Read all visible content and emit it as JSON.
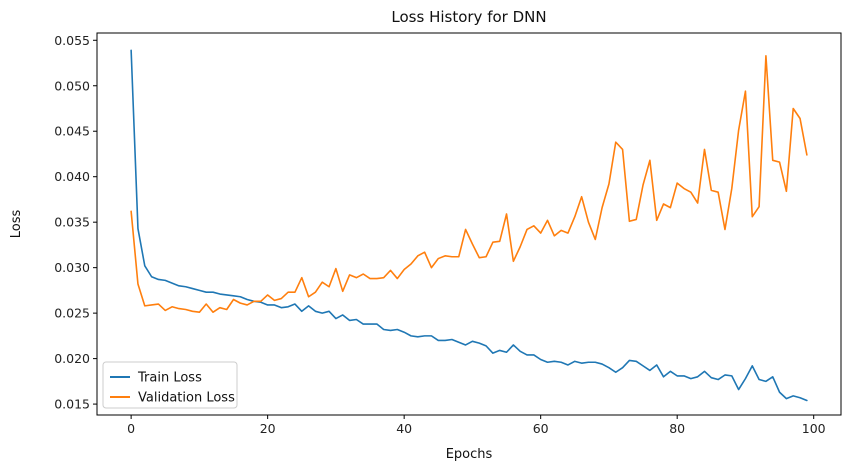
{
  "chart_data": {
    "type": "line",
    "title": "Loss History for DNN",
    "xlabel": "Epochs",
    "ylabel": "Loss",
    "xlim": [
      -5,
      104
    ],
    "ylim": [
      0.0138,
      0.0558
    ],
    "xticks": [
      0,
      20,
      40,
      60,
      80,
      100
    ],
    "yticks": [
      0.015,
      0.02,
      0.025,
      0.03,
      0.035,
      0.04,
      0.045,
      0.05,
      0.055
    ],
    "ytick_labels": [
      "0.015",
      "0.020",
      "0.025",
      "0.030",
      "0.035",
      "0.040",
      "0.045",
      "0.050",
      "0.055"
    ],
    "grid": false,
    "legend_position": "lower-left",
    "series": [
      {
        "name": "Train Loss",
        "color": "#1f77b4",
        "x": [
          0,
          1,
          2,
          3,
          4,
          5,
          6,
          7,
          8,
          9,
          10,
          11,
          12,
          13,
          14,
          15,
          16,
          17,
          18,
          19,
          20,
          21,
          22,
          23,
          24,
          25,
          26,
          27,
          28,
          29,
          30,
          31,
          32,
          33,
          34,
          35,
          36,
          37,
          38,
          39,
          40,
          41,
          42,
          43,
          44,
          45,
          46,
          47,
          48,
          49,
          50,
          51,
          52,
          53,
          54,
          55,
          56,
          57,
          58,
          59,
          60,
          61,
          62,
          63,
          64,
          65,
          66,
          67,
          68,
          69,
          70,
          71,
          72,
          73,
          74,
          75,
          76,
          77,
          78,
          79,
          80,
          81,
          82,
          83,
          84,
          85,
          86,
          87,
          88,
          89,
          90,
          91,
          92,
          93,
          94,
          95,
          96,
          97,
          98,
          99
        ],
        "values": [
          0.0539,
          0.0343,
          0.0302,
          0.029,
          0.0287,
          0.0286,
          0.0283,
          0.028,
          0.0279,
          0.0277,
          0.0275,
          0.0273,
          0.0273,
          0.0271,
          0.027,
          0.0269,
          0.0268,
          0.0265,
          0.0263,
          0.0262,
          0.0259,
          0.0259,
          0.0256,
          0.0257,
          0.026,
          0.0252,
          0.0258,
          0.0252,
          0.025,
          0.0252,
          0.0244,
          0.0248,
          0.0242,
          0.0243,
          0.0238,
          0.0238,
          0.0238,
          0.0232,
          0.0231,
          0.0232,
          0.0229,
          0.0225,
          0.0224,
          0.0225,
          0.0225,
          0.022,
          0.022,
          0.0221,
          0.0218,
          0.0215,
          0.0219,
          0.0217,
          0.0214,
          0.0206,
          0.0209,
          0.0207,
          0.0215,
          0.0208,
          0.0204,
          0.0204,
          0.0199,
          0.0196,
          0.0197,
          0.0196,
          0.0193,
          0.0197,
          0.0195,
          0.0196,
          0.0196,
          0.0194,
          0.019,
          0.0185,
          0.019,
          0.0198,
          0.0197,
          0.0192,
          0.0187,
          0.0193,
          0.018,
          0.0186,
          0.0181,
          0.0181,
          0.0178,
          0.018,
          0.0186,
          0.0179,
          0.0177,
          0.0182,
          0.0181,
          0.0166,
          0.0178,
          0.0192,
          0.0177,
          0.0175,
          0.018,
          0.0163,
          0.0156,
          0.0159,
          0.0157,
          0.0154
        ]
      },
      {
        "name": "Validation Loss",
        "color": "#ff7f0e",
        "x": [
          0,
          1,
          2,
          3,
          4,
          5,
          6,
          7,
          8,
          9,
          10,
          11,
          12,
          13,
          14,
          15,
          16,
          17,
          18,
          19,
          20,
          21,
          22,
          23,
          24,
          25,
          26,
          27,
          28,
          29,
          30,
          31,
          32,
          33,
          34,
          35,
          36,
          37,
          38,
          39,
          40,
          41,
          42,
          43,
          44,
          45,
          46,
          47,
          48,
          49,
          50,
          51,
          52,
          53,
          54,
          55,
          56,
          57,
          58,
          59,
          60,
          61,
          62,
          63,
          64,
          65,
          66,
          67,
          68,
          69,
          70,
          71,
          72,
          73,
          74,
          75,
          76,
          77,
          78,
          79,
          80,
          81,
          82,
          83,
          84,
          85,
          86,
          87,
          88,
          89,
          90,
          91,
          92,
          93,
          94,
          95,
          96,
          97,
          98,
          99
        ],
        "values": [
          0.0362,
          0.0282,
          0.0258,
          0.0259,
          0.026,
          0.0253,
          0.0257,
          0.0255,
          0.0254,
          0.0252,
          0.0251,
          0.026,
          0.0251,
          0.0256,
          0.0254,
          0.0265,
          0.0261,
          0.0259,
          0.0263,
          0.0263,
          0.027,
          0.0264,
          0.0266,
          0.0273,
          0.0273,
          0.0289,
          0.0268,
          0.0273,
          0.0284,
          0.0279,
          0.0299,
          0.0274,
          0.0292,
          0.0289,
          0.0293,
          0.0288,
          0.0288,
          0.0289,
          0.0297,
          0.0288,
          0.0298,
          0.0304,
          0.0313,
          0.0317,
          0.03,
          0.031,
          0.0313,
          0.0312,
          0.0312,
          0.0342,
          0.0326,
          0.0311,
          0.0312,
          0.0328,
          0.0329,
          0.0359,
          0.0307,
          0.0323,
          0.0342,
          0.0346,
          0.0338,
          0.0352,
          0.0335,
          0.0341,
          0.0338,
          0.0356,
          0.0378,
          0.035,
          0.0331,
          0.0366,
          0.0392,
          0.0438,
          0.043,
          0.0351,
          0.0353,
          0.0391,
          0.0418,
          0.0352,
          0.037,
          0.0366,
          0.0393,
          0.0387,
          0.0383,
          0.0371,
          0.043,
          0.0385,
          0.0383,
          0.0342,
          0.0387,
          0.0451,
          0.0494,
          0.0356,
          0.0367,
          0.0533,
          0.0418,
          0.0416,
          0.0384,
          0.0475,
          0.0464,
          0.0424
        ]
      }
    ]
  }
}
